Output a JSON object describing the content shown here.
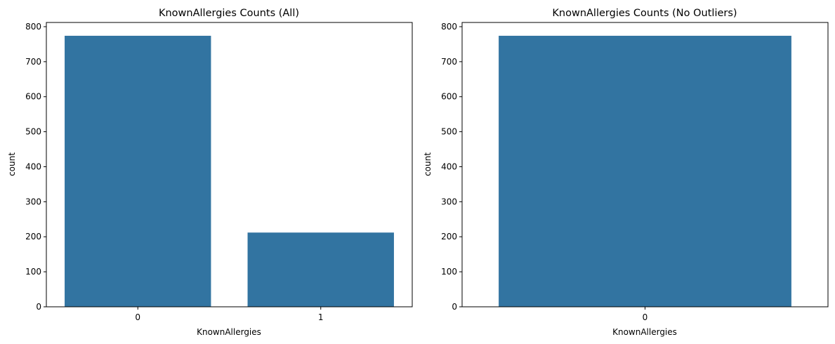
{
  "chart_data": [
    {
      "type": "bar",
      "title": "KnownAllergies Counts (All)",
      "xlabel": "KnownAllergies",
      "ylabel": "count",
      "categories": [
        "0",
        "1"
      ],
      "values": [
        774,
        212
      ],
      "ylim": [
        0,
        812
      ],
      "yticks": [
        0,
        100,
        200,
        300,
        400,
        500,
        600,
        700,
        800
      ],
      "bar_color": "#3274a1",
      "grid": false
    },
    {
      "type": "bar",
      "title": "KnownAllergies Counts (No Outliers)",
      "xlabel": "KnownAllergies",
      "ylabel": "count",
      "categories": [
        "0"
      ],
      "values": [
        774
      ],
      "ylim": [
        0,
        812
      ],
      "yticks": [
        0,
        100,
        200,
        300,
        400,
        500,
        600,
        700,
        800
      ],
      "bar_color": "#3274a1",
      "grid": false
    }
  ]
}
